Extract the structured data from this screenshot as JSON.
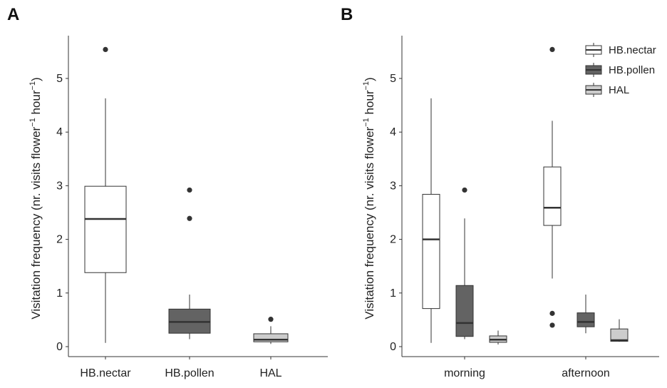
{
  "panels": [
    {
      "label": "A",
      "ylabel_main": "Visitation frequency (nr. visits flower",
      "ylabel_sup1": "−1",
      "ylabel_mid": " hour",
      "ylabel_sup2": "−1",
      "ylabel_end": ")",
      "yticks": [
        "0",
        "1",
        "2",
        "3",
        "4",
        "5"
      ],
      "categories": [
        "HB.nectar",
        "HB.pollen",
        "HAL"
      ]
    },
    {
      "label": "B",
      "ylabel_main": "Visitation frequency (nr. visits flower",
      "ylabel_sup1": "−1",
      "ylabel_mid": " hour",
      "ylabel_sup2": "−1",
      "ylabel_end": ")",
      "yticks": [
        "0",
        "1",
        "2",
        "3",
        "4",
        "5"
      ],
      "categories": [
        "morning",
        "afternoon"
      ],
      "legend": [
        "HB.nectar",
        "HB.pollen",
        "HAL"
      ]
    }
  ],
  "colors": {
    "HB.nectar": "#ffffff",
    "HB.pollen": "#636363",
    "HAL": "#cccccc"
  },
  "chart_data": [
    {
      "type": "box",
      "categories": [
        "HB.nectar",
        "HB.pollen",
        "HAL"
      ],
      "ylim": [
        0,
        5.75
      ],
      "grid": false,
      "boxes": [
        {
          "name": "HB.nectar",
          "whisker_low": 0.07,
          "q1": 1.38,
          "median": 2.38,
          "q3": 2.99,
          "whisker_high": 4.63,
          "outliers": [
            5.54
          ]
        },
        {
          "name": "HB.pollen",
          "whisker_low": 0.14,
          "q1": 0.25,
          "median": 0.46,
          "q3": 0.7,
          "whisker_high": 0.97,
          "outliers": [
            2.39,
            2.92
          ]
        },
        {
          "name": "HAL",
          "whisker_low": 0.05,
          "q1": 0.09,
          "median": 0.13,
          "q3": 0.24,
          "whisker_high": 0.38,
          "outliers": [
            0.51
          ]
        }
      ]
    },
    {
      "type": "box",
      "categories": [
        "morning",
        "afternoon"
      ],
      "ylim": [
        0,
        5.75
      ],
      "grid": false,
      "legend_position": "top-right",
      "series": [
        {
          "name": "HB.nectar",
          "boxes": [
            {
              "whisker_low": 0.07,
              "q1": 0.71,
              "median": 2.0,
              "q3": 2.84,
              "whisker_high": 4.63,
              "outliers": []
            },
            {
              "whisker_low": 1.27,
              "q1": 2.26,
              "median": 2.59,
              "q3": 3.35,
              "whisker_high": 4.21,
              "outliers": [
                0.4,
                0.62,
                5.54
              ]
            }
          ]
        },
        {
          "name": "HB.pollen",
          "boxes": [
            {
              "whisker_low": 0.14,
              "q1": 0.19,
              "median": 0.44,
              "q3": 1.14,
              "whisker_high": 2.39,
              "outliers": [
                2.92
              ]
            },
            {
              "whisker_low": 0.25,
              "q1": 0.37,
              "median": 0.46,
              "q3": 0.63,
              "whisker_high": 0.97,
              "outliers": []
            }
          ]
        },
        {
          "name": "HAL",
          "boxes": [
            {
              "whisker_low": 0.04,
              "q1": 0.08,
              "median": 0.13,
              "q3": 0.2,
              "whisker_high": 0.3,
              "outliers": []
            },
            {
              "whisker_low": 0.09,
              "q1": 0.1,
              "median": 0.12,
              "q3": 0.33,
              "whisker_high": 0.51,
              "outliers": []
            }
          ]
        }
      ]
    }
  ]
}
